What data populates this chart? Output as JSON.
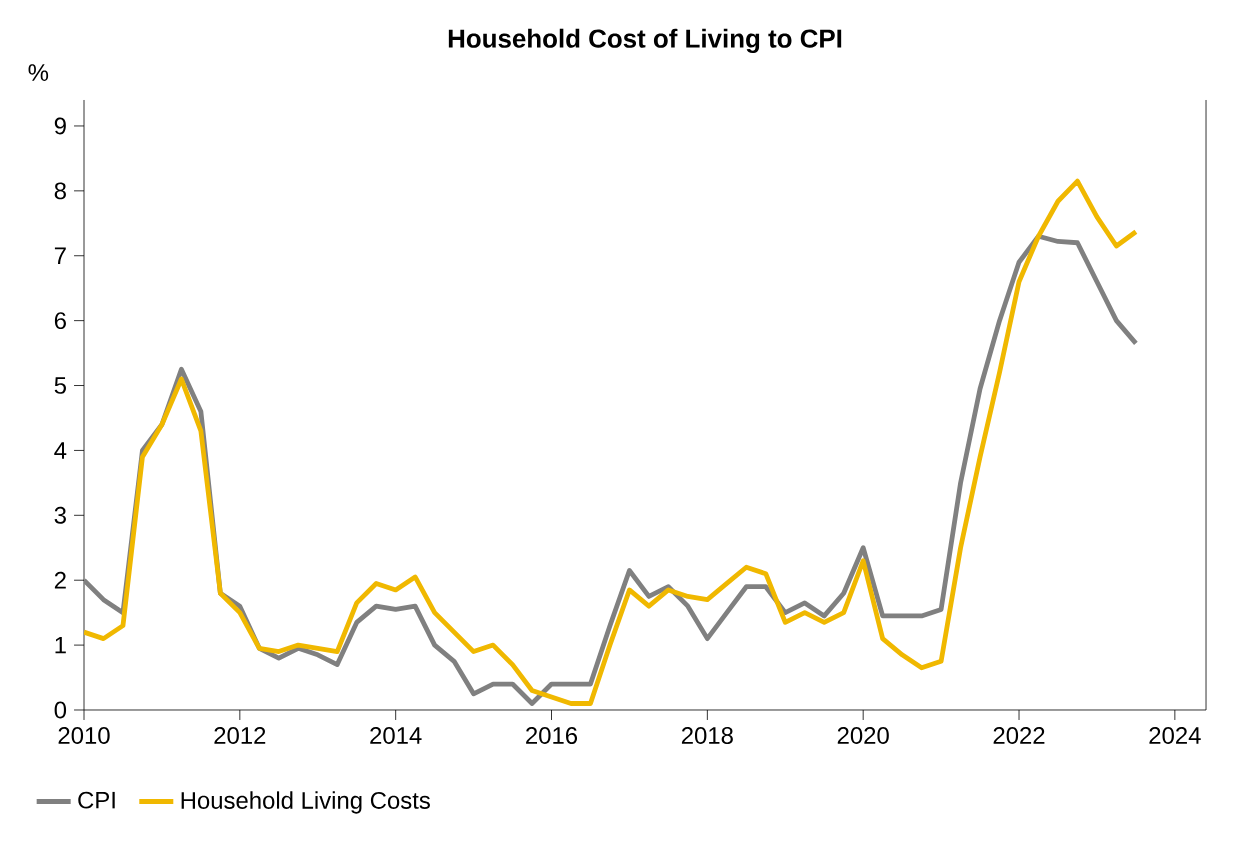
{
  "chart_data": {
    "type": "line",
    "title": "Household Cost of Living to CPI",
    "ylabel": "%",
    "x": [
      2010.0,
      2010.25,
      2010.5,
      2010.75,
      2011.0,
      2011.25,
      2011.5,
      2011.75,
      2012.0,
      2012.25,
      2012.5,
      2012.75,
      2013.0,
      2013.25,
      2013.5,
      2013.75,
      2014.0,
      2014.25,
      2014.5,
      2014.75,
      2015.0,
      2015.25,
      2015.5,
      2015.75,
      2016.0,
      2016.25,
      2016.5,
      2016.75,
      2017.0,
      2017.25,
      2017.5,
      2017.75,
      2018.0,
      2018.25,
      2018.5,
      2018.75,
      2019.0,
      2019.25,
      2019.5,
      2019.75,
      2020.0,
      2020.25,
      2020.5,
      2020.75,
      2021.0,
      2021.25,
      2021.5,
      2021.75,
      2022.0,
      2022.25,
      2022.5,
      2022.75,
      2023.0,
      2023.25,
      2023.5
    ],
    "series": [
      {
        "name": "CPI",
        "color": "#808080",
        "values": [
          2.0,
          1.7,
          1.5,
          4.0,
          4.4,
          5.25,
          4.6,
          1.8,
          1.6,
          0.95,
          0.8,
          0.95,
          0.85,
          0.7,
          1.35,
          1.6,
          1.55,
          1.6,
          1.0,
          0.75,
          0.25,
          0.4,
          0.4,
          0.1,
          0.4,
          0.4,
          0.4,
          1.3,
          2.15,
          1.75,
          1.9,
          1.6,
          1.1,
          1.5,
          1.9,
          1.9,
          1.5,
          1.65,
          1.45,
          1.8,
          2.5,
          1.45,
          1.45,
          1.45,
          1.55,
          3.5,
          4.95,
          6.0,
          6.9,
          7.3,
          7.22,
          7.2,
          6.6,
          6.0,
          5.65
        ]
      },
      {
        "name": "Household Living Costs",
        "color": "#f0b800",
        "values": [
          1.2,
          1.1,
          1.3,
          3.9,
          4.4,
          5.1,
          4.3,
          1.8,
          1.5,
          0.95,
          0.9,
          1.0,
          0.95,
          0.9,
          1.65,
          1.95,
          1.85,
          2.05,
          1.5,
          1.2,
          0.9,
          1.0,
          0.7,
          0.3,
          0.2,
          0.1,
          0.1,
          1.0,
          1.85,
          1.6,
          1.85,
          1.75,
          1.7,
          1.95,
          2.2,
          2.1,
          1.35,
          1.5,
          1.35,
          1.5,
          2.3,
          1.1,
          0.85,
          0.65,
          0.75,
          2.5,
          3.9,
          5.2,
          6.6,
          7.3,
          7.84,
          8.15,
          7.6,
          7.15,
          7.37
        ]
      }
    ],
    "xlim": [
      2010,
      2024.4
    ],
    "xticks": [
      2010,
      2012,
      2014,
      2016,
      2018,
      2020,
      2022,
      2024
    ],
    "ylim": [
      0,
      9.4
    ],
    "yticks": [
      0,
      1,
      2,
      3,
      4,
      5,
      6,
      7,
      8,
      9
    ],
    "grid": false,
    "legend": "bottom",
    "marker": "none",
    "line_style": "solid"
  }
}
